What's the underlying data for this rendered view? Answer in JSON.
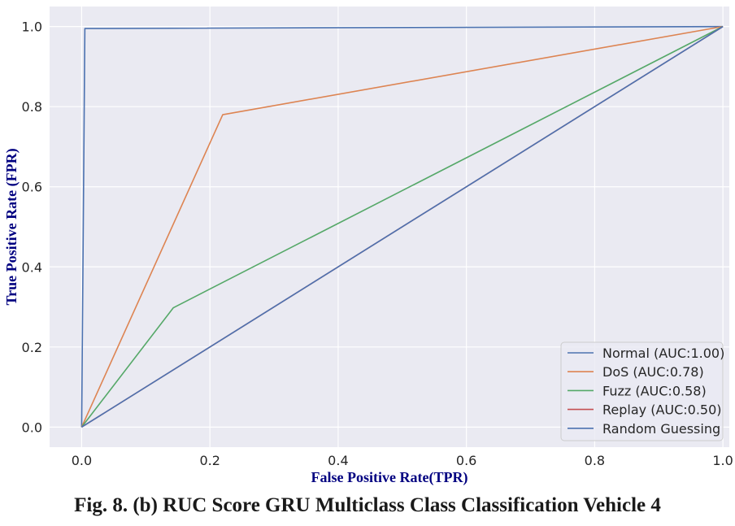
{
  "chart_data": {
    "type": "line",
    "xlabel": "False Positive Rate(TPR)",
    "ylabel": "True Positive Rate (FPR)",
    "xlim": [
      -0.05,
      1.01
    ],
    "ylim": [
      -0.05,
      1.05
    ],
    "xticks": [
      "0.0",
      "0.2",
      "0.4",
      "0.6",
      "0.8",
      "1.0"
    ],
    "yticks": [
      "0.0",
      "0.2",
      "0.4",
      "0.6",
      "0.8",
      "1.0"
    ],
    "grid": true,
    "legend_position": "lower-right",
    "series": [
      {
        "name": "Normal (AUC:1.00)",
        "color": "#4c72b0",
        "x": [
          0,
          0.005,
          1
        ],
        "y": [
          0,
          0.995,
          1
        ]
      },
      {
        "name": "DoS (AUC:0.78)",
        "color": "#dd8452",
        "x": [
          0,
          0.22,
          1
        ],
        "y": [
          0,
          0.78,
          1
        ]
      },
      {
        "name": "Fuzz (AUC:0.58)",
        "color": "#55a868",
        "x": [
          0,
          0.143,
          1
        ],
        "y": [
          0,
          0.298,
          1
        ]
      },
      {
        "name": "Replay (AUC:0.50)",
        "color": "#c44e52",
        "x": [
          0,
          1
        ],
        "y": [
          0,
          1
        ]
      },
      {
        "name": "Random Guessing",
        "color": "#4c72b0",
        "x": [
          0,
          1
        ],
        "y": [
          0,
          1
        ]
      }
    ]
  },
  "caption": "Fig. 8. (b) RUC Score GRU Multiclass Class Classification Vehicle 4"
}
